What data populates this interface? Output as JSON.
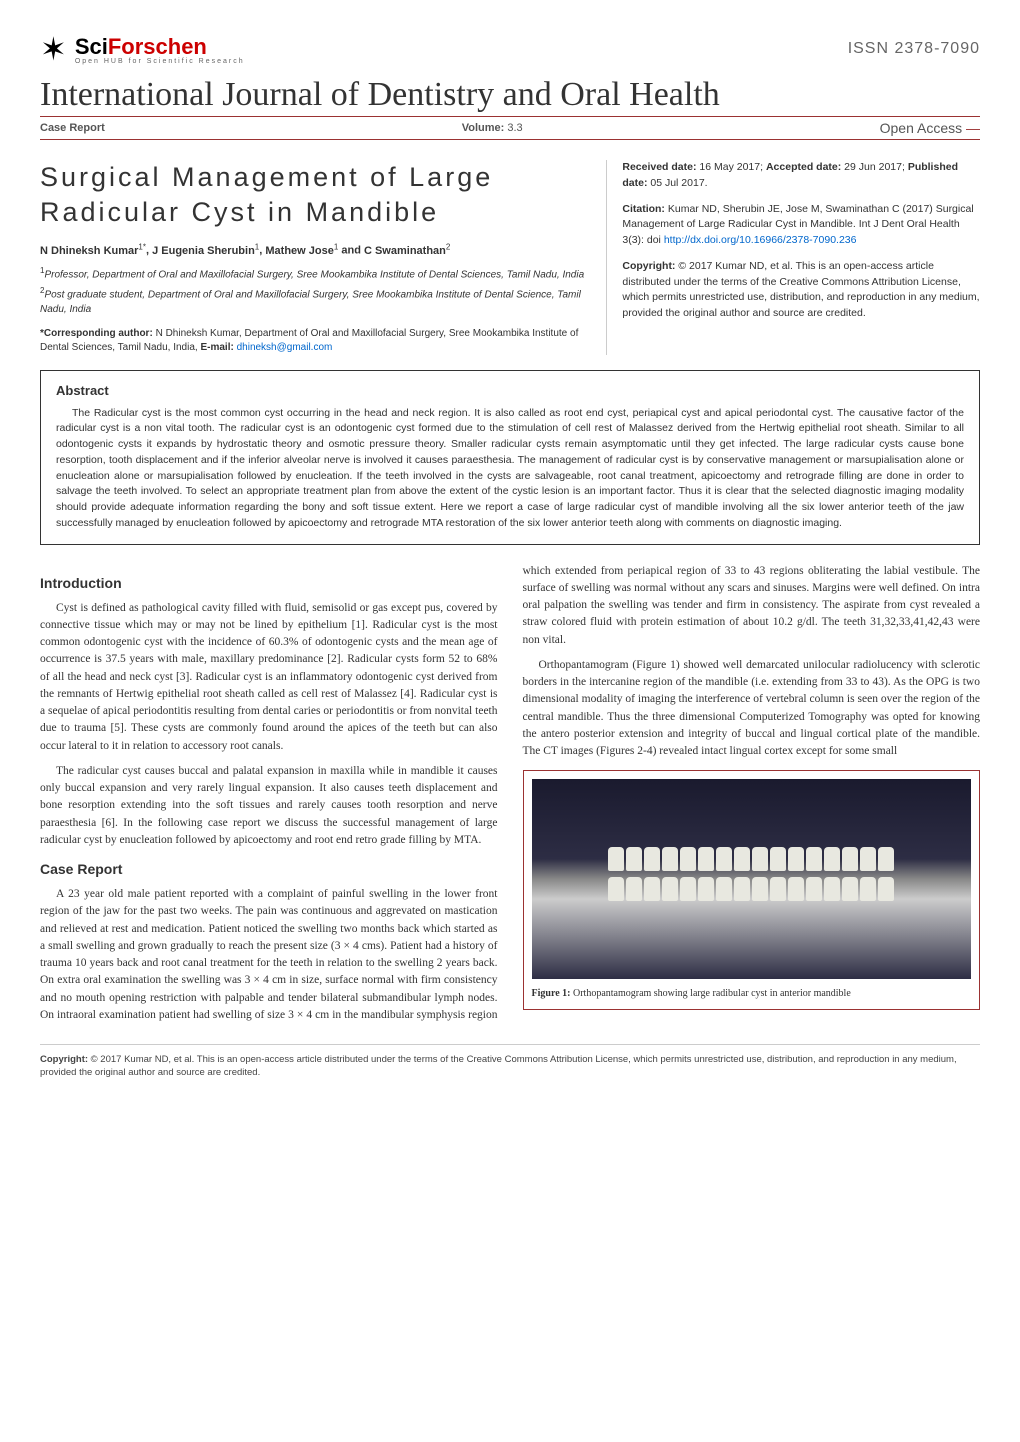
{
  "header": {
    "logo_main": "Sci",
    "logo_accent": "Forschen",
    "logo_subtitle": "Open HUB for Scientific Research",
    "issn": "ISSN 2378-7090"
  },
  "journal_title": "International Journal of Dentistry and Oral Health",
  "meta_bar": {
    "left": "Case Report",
    "center_label": "Volume:",
    "center_value": "3.3",
    "right": "Open Access"
  },
  "article": {
    "title": "Surgical Management of Large Radicular Cyst in Mandible",
    "authors_html": "N Dhineksh Kumar^{1*}, J Eugenia Sherubin^{1}, Mathew Jose^{1} and C Swaminathan^{2}",
    "authors": [
      {
        "name": "N Dhineksh Kumar",
        "sup": "1*"
      },
      {
        "name": "J Eugenia Sherubin",
        "sup": "1"
      },
      {
        "name": "Mathew Jose",
        "sup": "1"
      },
      {
        "name": "C Swaminathan",
        "sup": "2"
      }
    ],
    "affiliations": [
      {
        "sup": "1",
        "text": "Professor, Department of Oral and Maxillofacial Surgery, Sree Mookambika Institute of Dental Sciences, Tamil Nadu, India"
      },
      {
        "sup": "2",
        "text": "Post graduate student, Department of Oral and Maxillofacial Surgery, Sree Mookambika Institute of Dental Science, Tamil Nadu, India"
      }
    ],
    "corresponding_label": "*Corresponding author:",
    "corresponding_text": "N Dhineksh Kumar, Department of Oral and Maxillofacial Surgery, Sree Mookambika Institute of Dental Sciences, Tamil Nadu, India,",
    "corresponding_email_label": "E-mail:",
    "corresponding_email": "dhineksh@gmail.com"
  },
  "info": {
    "received_label": "Received date:",
    "received": "16 May 2017;",
    "accepted_label": "Accepted date:",
    "accepted": "29 Jun 2017;",
    "published_label": "Published date:",
    "published": "05 Jul 2017.",
    "citation_label": "Citation:",
    "citation": "Kumar ND, Sherubin JE, Jose M, Swaminathan C (2017) Surgical Management of Large Radicular Cyst in Mandible. Int J Dent Oral Health 3(3): doi",
    "doi": "http://dx.doi.org/10.16966/2378-7090.236",
    "copyright_label": "Copyright:",
    "copyright": "© 2017 Kumar ND, et al. This is an open-access article distributed under the terms of the Creative Commons Attribution License, which permits unrestricted use, distribution, and reproduction in any medium, provided the original author and source are credited."
  },
  "abstract": {
    "heading": "Abstract",
    "text": "The Radicular cyst is the most common cyst occurring in the head and neck region. It is also called as root end cyst, periapical cyst and apical periodontal cyst. The causative factor of the radicular cyst is a non vital tooth. The radicular cyst is an odontogenic cyst formed due to the stimulation of cell rest of Malassez derived from the Hertwig epithelial root sheath. Similar to all odontogenic cysts it expands by hydrostatic theory and osmotic pressure theory. Smaller radicular cysts remain asymptomatic until they get infected. The large radicular cysts cause bone resorption, tooth displacement and if the inferior alveolar nerve is involved it causes paraesthesia. The management of radicular cyst is by conservative management or marsupialisation alone or enucleation alone or marsupialisation followed by enucleation. If the teeth involved in the cysts are salvageable, root canal treatment, apicoectomy and retrograde filling are done in order to salvage the teeth involved. To select an appropriate treatment plan from above the extent of the cystic lesion is an important factor. Thus it is clear that the selected diagnostic imaging modality should provide adequate information regarding the bony and soft tissue extent. Here we report a case of large radicular cyst of mandible involving all the six lower anterior teeth of the jaw successfully managed by enucleation followed by apicoectomy and retrograde MTA restoration of the six lower anterior teeth along with comments on diagnostic imaging."
  },
  "body": {
    "intro_heading": "Introduction",
    "intro_p1": "Cyst is defined as pathological cavity filled with fluid, semisolid or gas except pus, covered by connective tissue which may or may not be lined by epithelium [1]. Radicular cyst is the most common odontogenic cyst with the incidence of 60.3% of odontogenic cysts and the mean age of occurrence is 37.5 years with male, maxillary predominance [2]. Radicular cysts form 52 to 68% of all the head and neck cyst [3]. Radicular cyst is an inflammatory odontogenic cyst derived from the remnants of Hertwig epithelial root sheath called as cell rest of Malassez [4]. Radicular cyst is a sequelae of apical periodontitis resulting from dental caries or periodontitis or from nonvital teeth due to trauma [5]. These cysts are commonly found around the apices of the teeth but can also occur lateral to it in relation to accessory root canals.",
    "intro_p2": "The radicular cyst causes buccal and palatal expansion in maxilla while in mandible it causes only buccal expansion and very rarely lingual expansion. It also causes teeth displacement and bone resorption extending into the soft tissues and rarely causes tooth resorption and nerve paraesthesia [6]. In the following case report we discuss the successful management of large radicular cyst by enucleation followed by apicoectomy and root end retro grade filling by MTA.",
    "case_heading": "Case Report",
    "case_p1": "A 23 year old male patient reported with a complaint of painful swelling in the lower front region of the jaw for the past two weeks. The pain was continuous and aggrevated on mastication and relieved at rest and medication. Patient noticed the swelling two months back which started as a small swelling and grown gradually to reach the present size (3 × 4 cms). Patient had a history of trauma 10 years back and root canal treatment for the teeth in relation to the swelling 2 years back. On extra oral examination the swelling was 3 × 4 cm in size, surface normal with firm consistency and no mouth opening restriction with palpable and tender bilateral submandibular lymph nodes. On intraoral examination patient had swelling of size 3 × 4 cm in the mandibular symphysis region which extended from periapical region of 33 to 43 regions obliterating the labial vestibule. The surface of swelling was normal without any scars and sinuses. Margins were well defined. On intra oral palpation the swelling was tender and firm in consistency. The aspirate from cyst revealed a straw colored fluid with protein estimation of about 10.2 g/dl. The teeth 31,32,33,41,42,43 were non vital.",
    "case_p2": "Orthopantamogram (Figure 1) showed well demarcated unilocular radiolucency with sclerotic borders in the intercanine region of the mandible (i.e. extending from 33 to 43). As the OPG is two dimensional modality of imaging the interference of vertebral column is seen over the region of the central mandible. Thus the three dimensional Computerized Tomography was opted for knowing the antero posterior extension and integrity of buccal and lingual cortical plate of the mandible. The CT images (Figures 2-4) revealed intact lingual cortex except for some small"
  },
  "figure1": {
    "label": "Figure 1:",
    "caption": "Orthopantamogram showing large radibular cyst in anterior mandible"
  },
  "footer_copyright_label": "Copyright:",
  "footer_copyright": "© 2017 Kumar ND, et al. This is an open-access article distributed under the terms of the Creative Commons Attribution License, which permits unrestricted use, distribution, and reproduction in any medium, provided the original author and source are credited.",
  "colors": {
    "accent": "#9b3232",
    "link": "#0066cc",
    "text": "#333333",
    "logo_accent": "#cc0000"
  }
}
